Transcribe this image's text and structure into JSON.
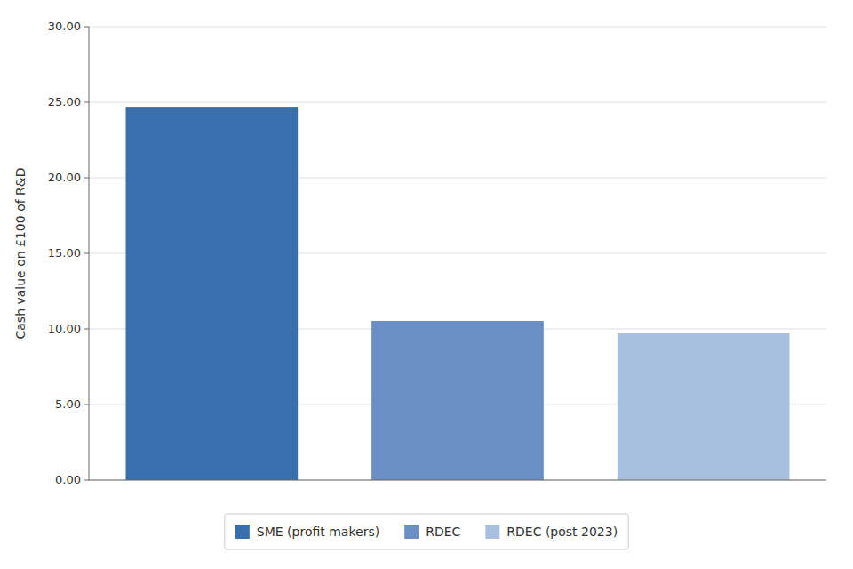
{
  "chart_data": {
    "type": "bar",
    "categories": [
      "SME (profit makers)",
      "RDEC",
      "RDEC (post 2023)"
    ],
    "values": [
      24.7,
      10.53,
      9.72
    ],
    "colors": [
      "#3a6fad",
      "#6b8fc4",
      "#a8bfe0"
    ],
    "ylabel": "Cash value on £100 of R&D",
    "ylim": [
      0,
      30
    ],
    "yticks": [
      {
        "value": 0,
        "label": "0.00"
      },
      {
        "value": 5,
        "label": "5.00"
      },
      {
        "value": 10,
        "label": "10.00"
      },
      {
        "value": 15,
        "label": "15.00"
      },
      {
        "value": 20,
        "label": "20.00"
      },
      {
        "value": 25,
        "label": "25.00"
      },
      {
        "value": 30,
        "label": "30.00"
      }
    ],
    "grid": true,
    "legend": "bottom",
    "tick_labels": "y"
  }
}
